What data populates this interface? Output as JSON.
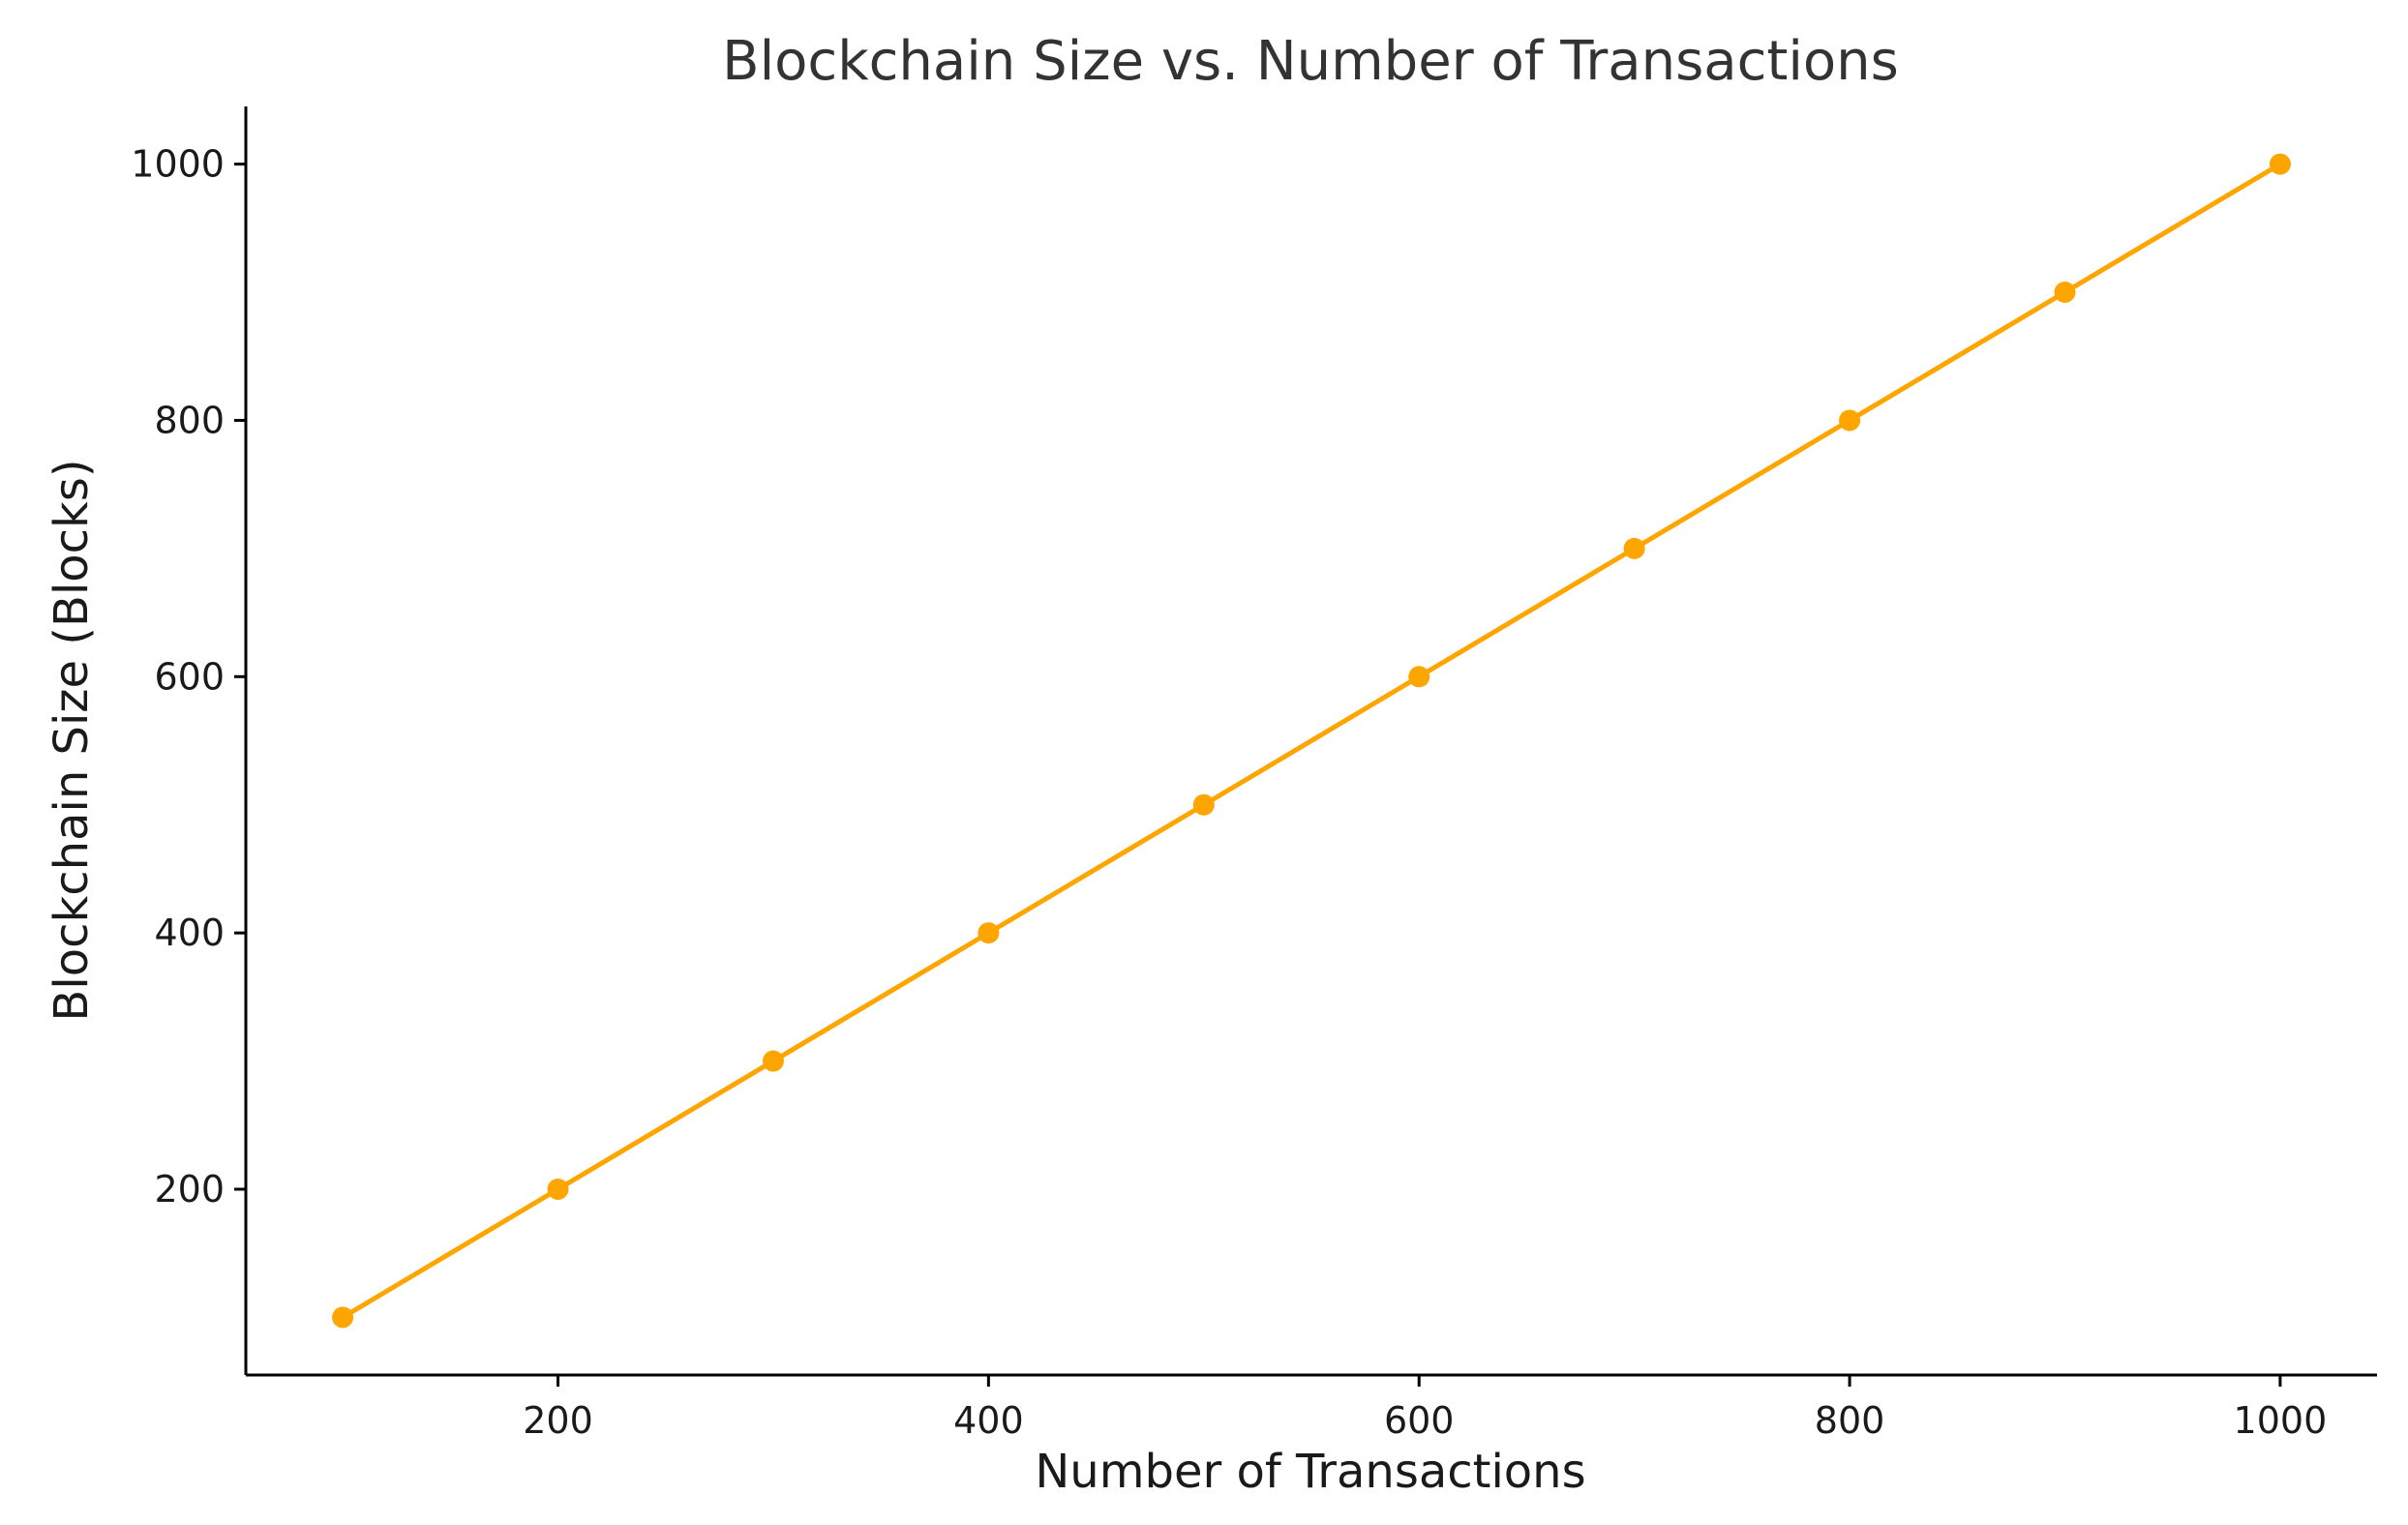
{
  "chart_data": {
    "type": "line",
    "title": "Blockchain Size vs. Number of Transactions",
    "xlabel": "Number of Transactions",
    "ylabel": "Blockchain Size (Blocks)",
    "x": [
      100,
      200,
      300,
      400,
      500,
      600,
      700,
      800,
      900,
      1000
    ],
    "series": [
      {
        "values": [
          100,
          200,
          300,
          400,
          500,
          600,
          700,
          800,
          900,
          1000
        ],
        "color": "#FFA500",
        "marker": "circle"
      }
    ],
    "xlim": [
      55,
      1045
    ],
    "ylim": [
      55,
      1045
    ],
    "xticks": [
      200,
      400,
      600,
      800,
      1000
    ],
    "yticks": [
      200,
      400,
      600,
      800,
      1000
    ],
    "grid": false,
    "legend": false
  }
}
